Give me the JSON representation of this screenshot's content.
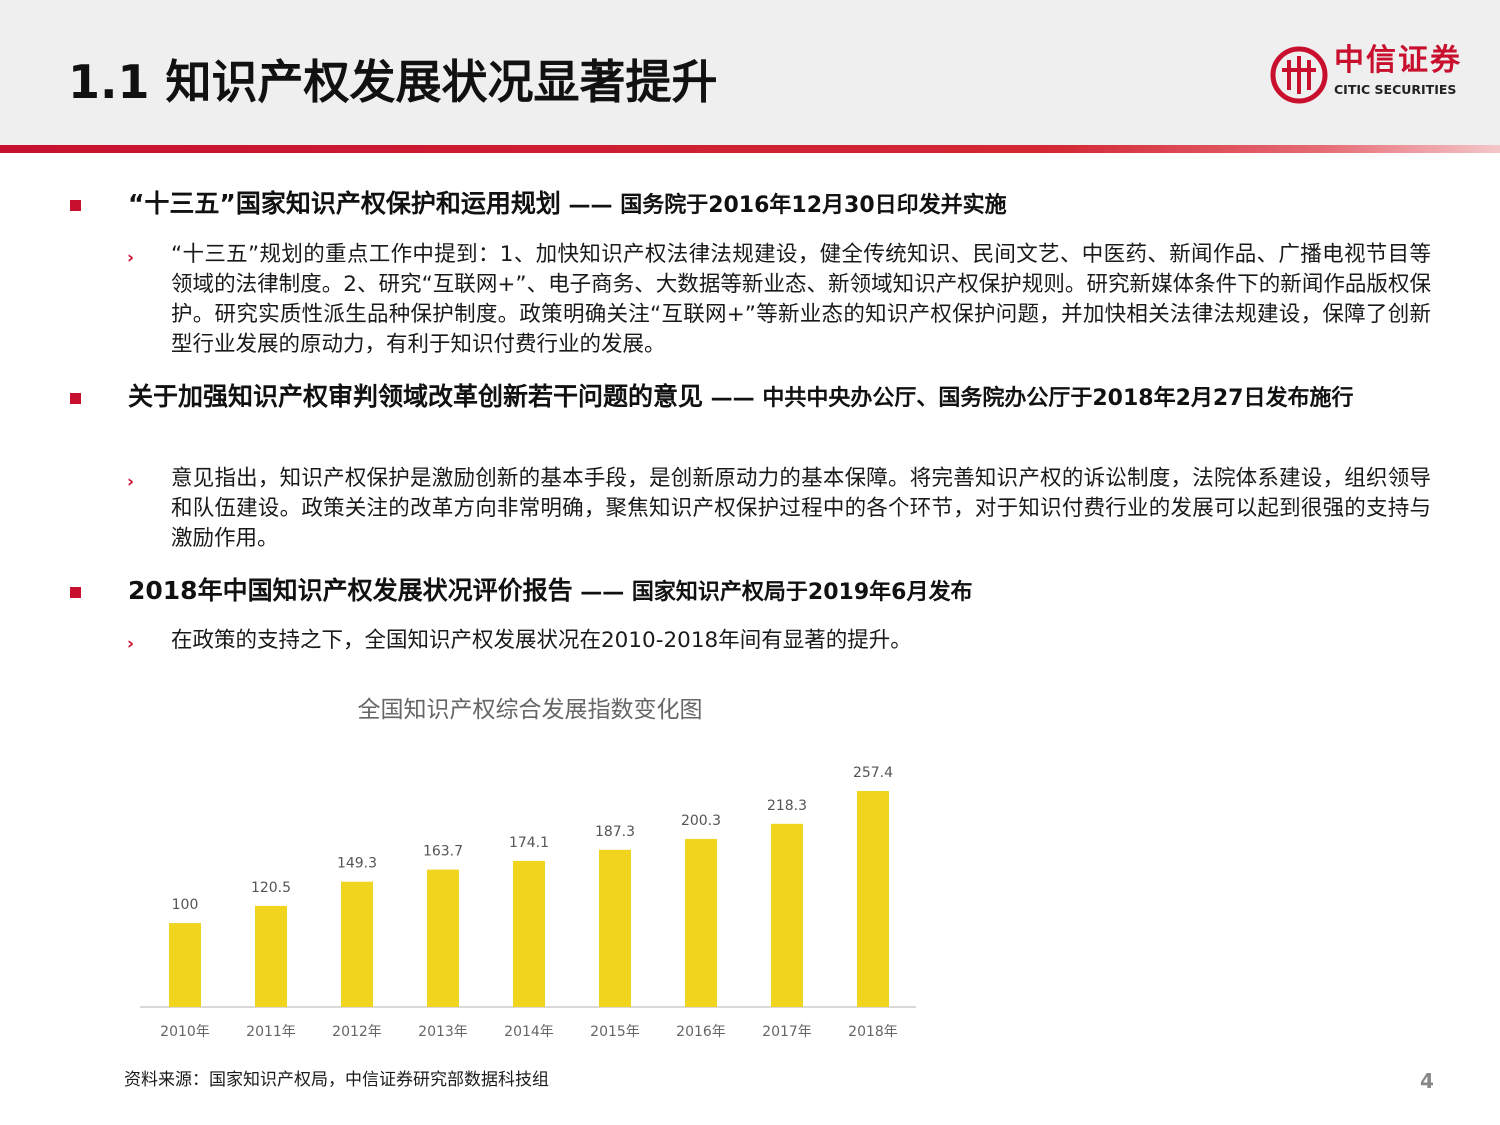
{
  "page": {
    "title": "1.1 知识产权发展状况显著提升",
    "page_number": "4",
    "source": "资料来源：国家知识产权局，中信证券研究部数据科技组"
  },
  "logo": {
    "cn": "中信证券",
    "en": "CITIC SECURITIES",
    "color": "#c8102e"
  },
  "sections": [
    {
      "heading": "“十三五”国家知识产权保护和运用规划",
      "heading_sub": " —— 国务院于2016年12月30日印发并实施",
      "points": [
        "“十三五”规划的重点工作中提到：1、加快知识产权法律法规建设，健全传统知识、民间文艺、中医药、新闻作品、广播电视节目等领域的法律制度。2、研究“互联网+”、电子商务、大数据等新业态、新领域知识产权保护规则。研究新媒体条件下的新闻作品版权保护。研究实质性派生品种保护制度。政策明确关注“互联网+”等新业态的知识产权保护问题，并加快相关法律法规建设，保障了创新型行业发展的原动力，有利于知识付费行业的发展。"
      ]
    },
    {
      "heading": "关于加强知识产权审判领域改革创新若干问题的意见",
      "heading_sub": " —— 中共中央办公厅、国务院办公厅于2018年2月27日发布施行",
      "points": [
        "意见指出，知识产权保护是激励创新的基本手段，是创新原动力的基本保障。将完善知识产权的诉讼制度，法院体系建设，组织领导和队伍建设。政策关注的改革方向非常明确，聚焦知识产权保护过程中的各个环节，对于知识付费行业的发展可以起到很强的支持与激励作用。"
      ]
    },
    {
      "heading": "2018年中国知识产权发展状况评价报告",
      "heading_sub": " —— 国家知识产权局于2019年6月发布",
      "points": [
        "在政策的支持之下，全国知识产权发展状况在2010-2018年间有显著的提升。"
      ]
    }
  ],
  "chart_data": {
    "type": "bar",
    "title": "全国知识产权综合发展指数变化图",
    "categories": [
      "2010年",
      "2011年",
      "2012年",
      "2013年",
      "2014年",
      "2015年",
      "2016年",
      "2017年",
      "2018年"
    ],
    "values": [
      100,
      120.5,
      149.3,
      163.7,
      174.1,
      187.3,
      200.3,
      218.3,
      257.4
    ],
    "value_labels": [
      "100",
      "120.5",
      "149.3",
      "163.7",
      "174.1",
      "187.3",
      "200.3",
      "218.3",
      "257.4"
    ],
    "ylim": [
      0,
      257.4
    ],
    "bar_color": "#f0d41e",
    "grid": false,
    "legend": "none"
  }
}
